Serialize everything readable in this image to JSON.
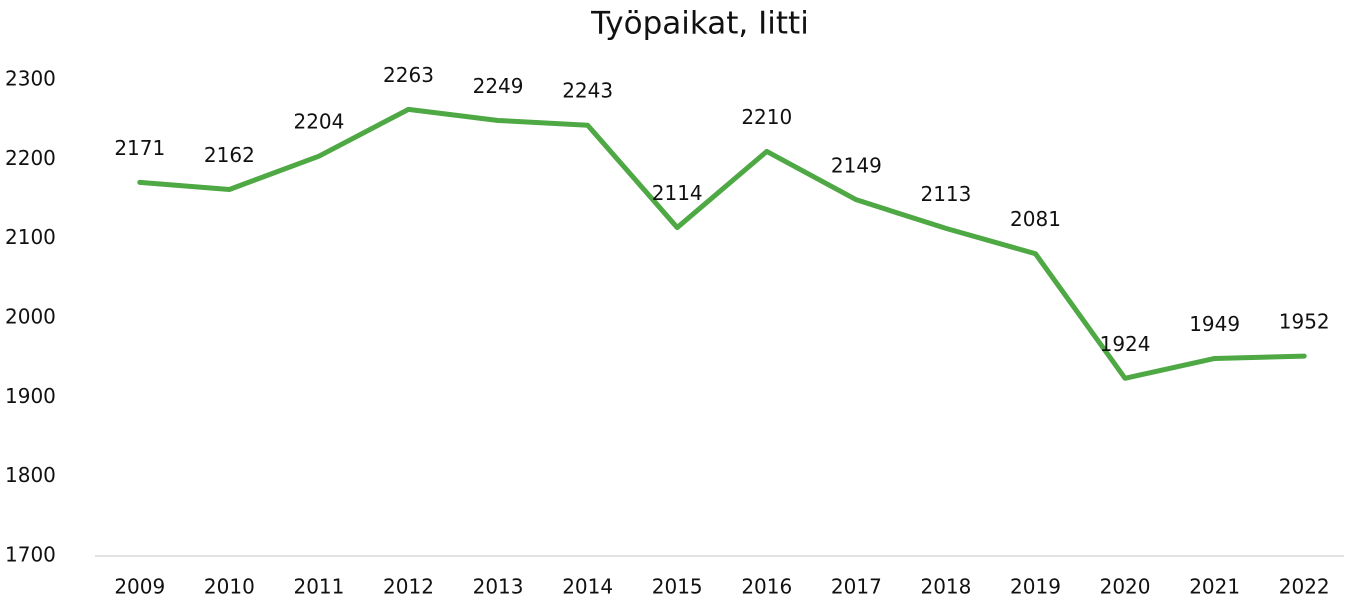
{
  "chart_data": {
    "type": "line",
    "title": "Työpaikat, Iitti",
    "categories": [
      "2009",
      "2010",
      "2011",
      "2012",
      "2013",
      "2014",
      "2015",
      "2016",
      "2017",
      "2018",
      "2019",
      "2020",
      "2021",
      "2022"
    ],
    "values": [
      2171,
      2162,
      2204,
      2263,
      2249,
      2243,
      2114,
      2210,
      2149,
      2113,
      2081,
      1924,
      1949,
      1952
    ],
    "color": "#4ea844",
    "ylim": [
      1700,
      2300
    ],
    "yticks": [
      1700,
      1800,
      1900,
      2000,
      2100,
      2200,
      2300
    ],
    "grid": false
  }
}
